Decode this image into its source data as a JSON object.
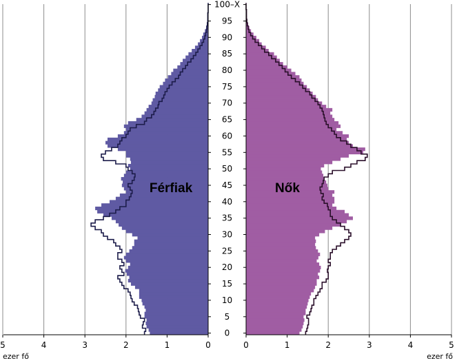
{
  "chart_data": {
    "type": "bar",
    "orientation": "horizontal",
    "layout": "population-pyramid",
    "xunit": "ezer fő",
    "xlim": [
      0,
      5
    ],
    "x_ticks": [
      "5",
      "4",
      "3",
      "2",
      "1",
      "0",
      "0",
      "1",
      "2",
      "3",
      "4",
      "5"
    ],
    "age_labels": [
      "0",
      "5",
      "10",
      "15",
      "20",
      "25",
      "30",
      "35",
      "40",
      "45",
      "50",
      "55",
      "60",
      "65",
      "70",
      "75",
      "80",
      "85",
      "90",
      "95",
      "100–X"
    ],
    "grid": "vertical",
    "panels": [
      {
        "name": "Férfiak",
        "fill_color": "#5f5aa3",
        "outline_color": "#1c1c4a",
        "filled": [
          1.42,
          1.45,
          1.5,
          1.52,
          1.5,
          1.55,
          1.55,
          1.52,
          1.55,
          1.6,
          1.62,
          1.68,
          1.68,
          1.68,
          1.78,
          1.88,
          1.95,
          1.92,
          1.98,
          2.02,
          1.95,
          1.9,
          2.0,
          2.05,
          2.0,
          1.92,
          1.85,
          1.8,
          1.8,
          1.72,
          1.85,
          2.0,
          2.1,
          2.18,
          2.25,
          2.35,
          2.55,
          2.7,
          2.75,
          2.6,
          2.4,
          2.25,
          2.15,
          2.0,
          2.05,
          2.1,
          2.08,
          2.12,
          2.05,
          2.0,
          1.9,
          1.95,
          1.88,
          1.9,
          2.0,
          2.0,
          2.2,
          2.45,
          2.5,
          2.45,
          2.2,
          2.05,
          2.0,
          2.05,
          1.95,
          1.75,
          1.62,
          1.55,
          1.5,
          1.45,
          1.38,
          1.35,
          1.3,
          1.28,
          1.22,
          1.18,
          1.1,
          1.05,
          0.98,
          0.9,
          0.85,
          0.75,
          0.68,
          0.62,
          0.55,
          0.48,
          0.4,
          0.32,
          0.25,
          0.2,
          0.15,
          0.12,
          0.08,
          0.05,
          0.03,
          0.02,
          0.01,
          0.01,
          0.0,
          0.0,
          0.0
        ],
        "outline": [
          1.55,
          1.52,
          1.6,
          1.58,
          1.55,
          1.65,
          1.68,
          1.7,
          1.72,
          1.8,
          1.85,
          1.88,
          1.9,
          1.95,
          2.05,
          2.1,
          2.15,
          2.2,
          2.05,
          2.1,
          2.15,
          2.05,
          2.1,
          2.2,
          2.2,
          2.1,
          2.15,
          2.25,
          2.3,
          2.45,
          2.55,
          2.6,
          2.75,
          2.85,
          2.75,
          2.55,
          2.4,
          2.25,
          2.15,
          2.0,
          2.0,
          1.92,
          1.88,
          1.85,
          1.9,
          1.95,
          1.85,
          1.8,
          1.78,
          1.85,
          1.95,
          2.0,
          2.25,
          2.55,
          2.6,
          2.5,
          2.35,
          2.2,
          2.15,
          2.1,
          2.0,
          1.95,
          1.9,
          1.75,
          1.55,
          1.5,
          1.38,
          1.32,
          1.28,
          1.22,
          1.2,
          1.12,
          1.08,
          1.05,
          1.0,
          0.95,
          0.88,
          0.8,
          0.72,
          0.68,
          0.62,
          0.55,
          0.5,
          0.42,
          0.36,
          0.3,
          0.25,
          0.2,
          0.15,
          0.11,
          0.08,
          0.06,
          0.04,
          0.03,
          0.02,
          0.01,
          0.01,
          0.01,
          0.0,
          0.0,
          0.0
        ]
      },
      {
        "name": "Nők",
        "fill_color": "#a05da3",
        "outline_color": "#2a0f2a",
        "filled": [
          1.3,
          1.35,
          1.38,
          1.4,
          1.42,
          1.4,
          1.45,
          1.45,
          1.48,
          1.5,
          1.52,
          1.55,
          1.58,
          1.65,
          1.68,
          1.72,
          1.72,
          1.78,
          1.75,
          1.8,
          1.82,
          1.78,
          1.72,
          1.76,
          1.8,
          1.75,
          1.7,
          1.68,
          1.7,
          1.68,
          1.78,
          1.92,
          2.1,
          2.3,
          2.45,
          2.6,
          2.5,
          2.4,
          2.2,
          2.1,
          2.15,
          2.15,
          2.1,
          2.15,
          2.0,
          1.98,
          1.95,
          1.9,
          1.88,
          1.85,
          1.82,
          1.9,
          2.1,
          2.3,
          2.5,
          2.85,
          2.9,
          2.6,
          2.5,
          2.45,
          2.5,
          2.35,
          2.2,
          2.3,
          2.25,
          2.15,
          2.1,
          2.05,
          2.1,
          1.95,
          1.85,
          1.75,
          1.7,
          1.62,
          1.55,
          1.48,
          1.4,
          1.35,
          1.3,
          1.2,
          1.1,
          1.0,
          0.9,
          0.82,
          0.75,
          0.68,
          0.55,
          0.48,
          0.38,
          0.32,
          0.25,
          0.18,
          0.12,
          0.08,
          0.05,
          0.03,
          0.02,
          0.01,
          0.01,
          0.0,
          0.0
        ],
        "outline": [
          1.45,
          1.48,
          1.5,
          1.52,
          1.52,
          1.48,
          1.55,
          1.58,
          1.6,
          1.65,
          1.65,
          1.7,
          1.75,
          1.8,
          1.85,
          1.85,
          1.95,
          2.0,
          2.0,
          1.98,
          2.0,
          2.05,
          2.0,
          2.05,
          2.05,
          2.1,
          2.2,
          2.3,
          2.4,
          2.5,
          2.55,
          2.5,
          2.4,
          2.3,
          2.2,
          2.1,
          2.05,
          2.05,
          2.0,
          1.98,
          1.9,
          1.85,
          1.88,
          1.82,
          1.8,
          1.85,
          1.88,
          1.9,
          2.0,
          2.1,
          2.4,
          2.55,
          2.7,
          2.9,
          2.95,
          2.8,
          2.7,
          2.55,
          2.45,
          2.3,
          2.2,
          2.15,
          2.08,
          2.0,
          1.95,
          1.92,
          1.9,
          1.88,
          1.85,
          1.8,
          1.75,
          1.68,
          1.6,
          1.55,
          1.45,
          1.38,
          1.3,
          1.2,
          1.1,
          1.02,
          0.95,
          0.88,
          0.8,
          0.72,
          0.62,
          0.55,
          0.45,
          0.38,
          0.3,
          0.22,
          0.16,
          0.11,
          0.07,
          0.05,
          0.03,
          0.02,
          0.01,
          0.01,
          0.01,
          0.0,
          0.0
        ]
      }
    ]
  }
}
